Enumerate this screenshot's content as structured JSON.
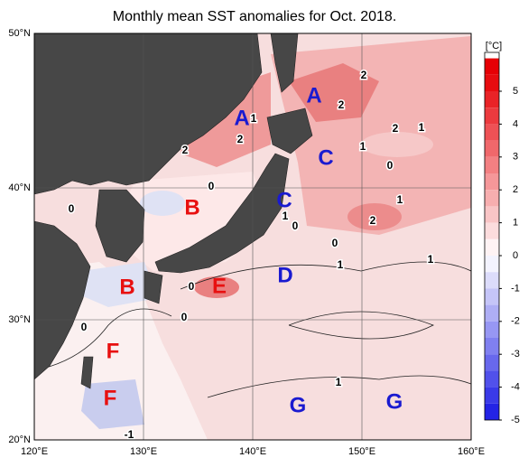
{
  "title": "Monthly mean SST anomalies for Oct. 2018.",
  "lon_labels": [
    "120°E",
    "130°E",
    "140°E",
    "150°E",
    "160°E"
  ],
  "lat_labels": [
    "50°N",
    "40°N",
    "30°N",
    "20°N"
  ],
  "colorbar": {
    "unit": "[°C]",
    "ticks": [
      5,
      4,
      3,
      2,
      1,
      0,
      -1,
      -2,
      -3,
      -4,
      -5
    ]
  },
  "regions": [
    {
      "text": "A",
      "color": "#1a1ad0"
    },
    {
      "text": "A",
      "color": "#1a1ad0"
    },
    {
      "text": "B",
      "color": "#e81010"
    },
    {
      "text": "B",
      "color": "#e81010"
    },
    {
      "text": "C",
      "color": "#1a1ad0"
    },
    {
      "text": "C",
      "color": "#1a1ad0"
    },
    {
      "text": "D",
      "color": "#1a1ad0"
    },
    {
      "text": "E",
      "color": "#e81010"
    },
    {
      "text": "F",
      "color": "#e81010"
    },
    {
      "text": "F",
      "color": "#e81010"
    },
    {
      "text": "G",
      "color": "#1a1ad0"
    },
    {
      "text": "G",
      "color": "#1a1ad0"
    }
  ],
  "contour_labels": [
    "2",
    "2",
    "2",
    "1",
    "1",
    "0",
    "1",
    "2",
    "2",
    "0",
    "0",
    "1",
    "2",
    "1",
    "0",
    "0",
    "1",
    "1",
    "0",
    "0",
    "0",
    "1",
    "-1"
  ]
}
